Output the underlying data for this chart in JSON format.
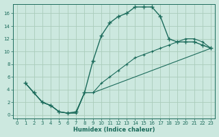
{
  "xlabel": "Humidex (Indice chaleur)",
  "bg_color": "#cce8df",
  "grid_color": "#aaccbb",
  "line_color": "#1a6a5a",
  "xlim": [
    -0.5,
    23.5
  ],
  "ylim": [
    -0.5,
    17.5
  ],
  "xticks": [
    0,
    1,
    2,
    3,
    4,
    5,
    6,
    7,
    8,
    9,
    10,
    11,
    12,
    13,
    14,
    15,
    16,
    17,
    18,
    19,
    20,
    21,
    22,
    23
  ],
  "yticks": [
    0,
    2,
    4,
    6,
    8,
    10,
    12,
    14,
    16
  ],
  "line1_x": [
    1,
    2,
    3,
    4,
    5,
    6,
    7,
    8,
    9,
    10,
    11,
    12,
    13,
    14,
    15,
    16,
    17,
    18,
    19,
    20,
    21,
    22,
    23
  ],
  "line1_y": [
    5,
    3.5,
    2,
    1.5,
    0.5,
    0.3,
    0.5,
    3.5,
    8.5,
    12.5,
    14.5,
    15.5,
    16,
    17,
    17,
    17,
    15.5,
    12,
    11.5,
    11.5,
    11.5,
    11,
    10.5
  ],
  "line2_x": [
    1,
    2,
    3,
    4,
    5,
    6,
    7,
    8,
    9,
    10,
    11,
    12,
    13,
    14,
    15,
    16,
    17,
    18,
    19,
    20,
    21,
    22,
    23
  ],
  "line2_y": [
    5,
    3.5,
    2,
    1.5,
    0.5,
    0.3,
    0.3,
    3.5,
    3.5,
    5,
    6,
    7,
    8,
    9,
    9.5,
    10,
    10.5,
    11,
    11.5,
    12,
    12,
    11.5,
    10.5
  ],
  "line3_x": [
    1,
    2,
    3,
    4,
    5,
    6,
    7,
    8,
    9,
    10,
    11,
    12,
    13,
    14,
    15,
    16,
    17,
    18,
    19,
    20,
    21,
    22,
    23
  ],
  "line3_y": [
    5,
    3.5,
    2,
    1.5,
    0.5,
    0.3,
    0.3,
    3.5,
    3.5,
    4,
    4.5,
    5,
    5.5,
    6,
    6.5,
    7,
    7.5,
    8,
    8.5,
    9,
    9.5,
    10,
    10.5
  ]
}
